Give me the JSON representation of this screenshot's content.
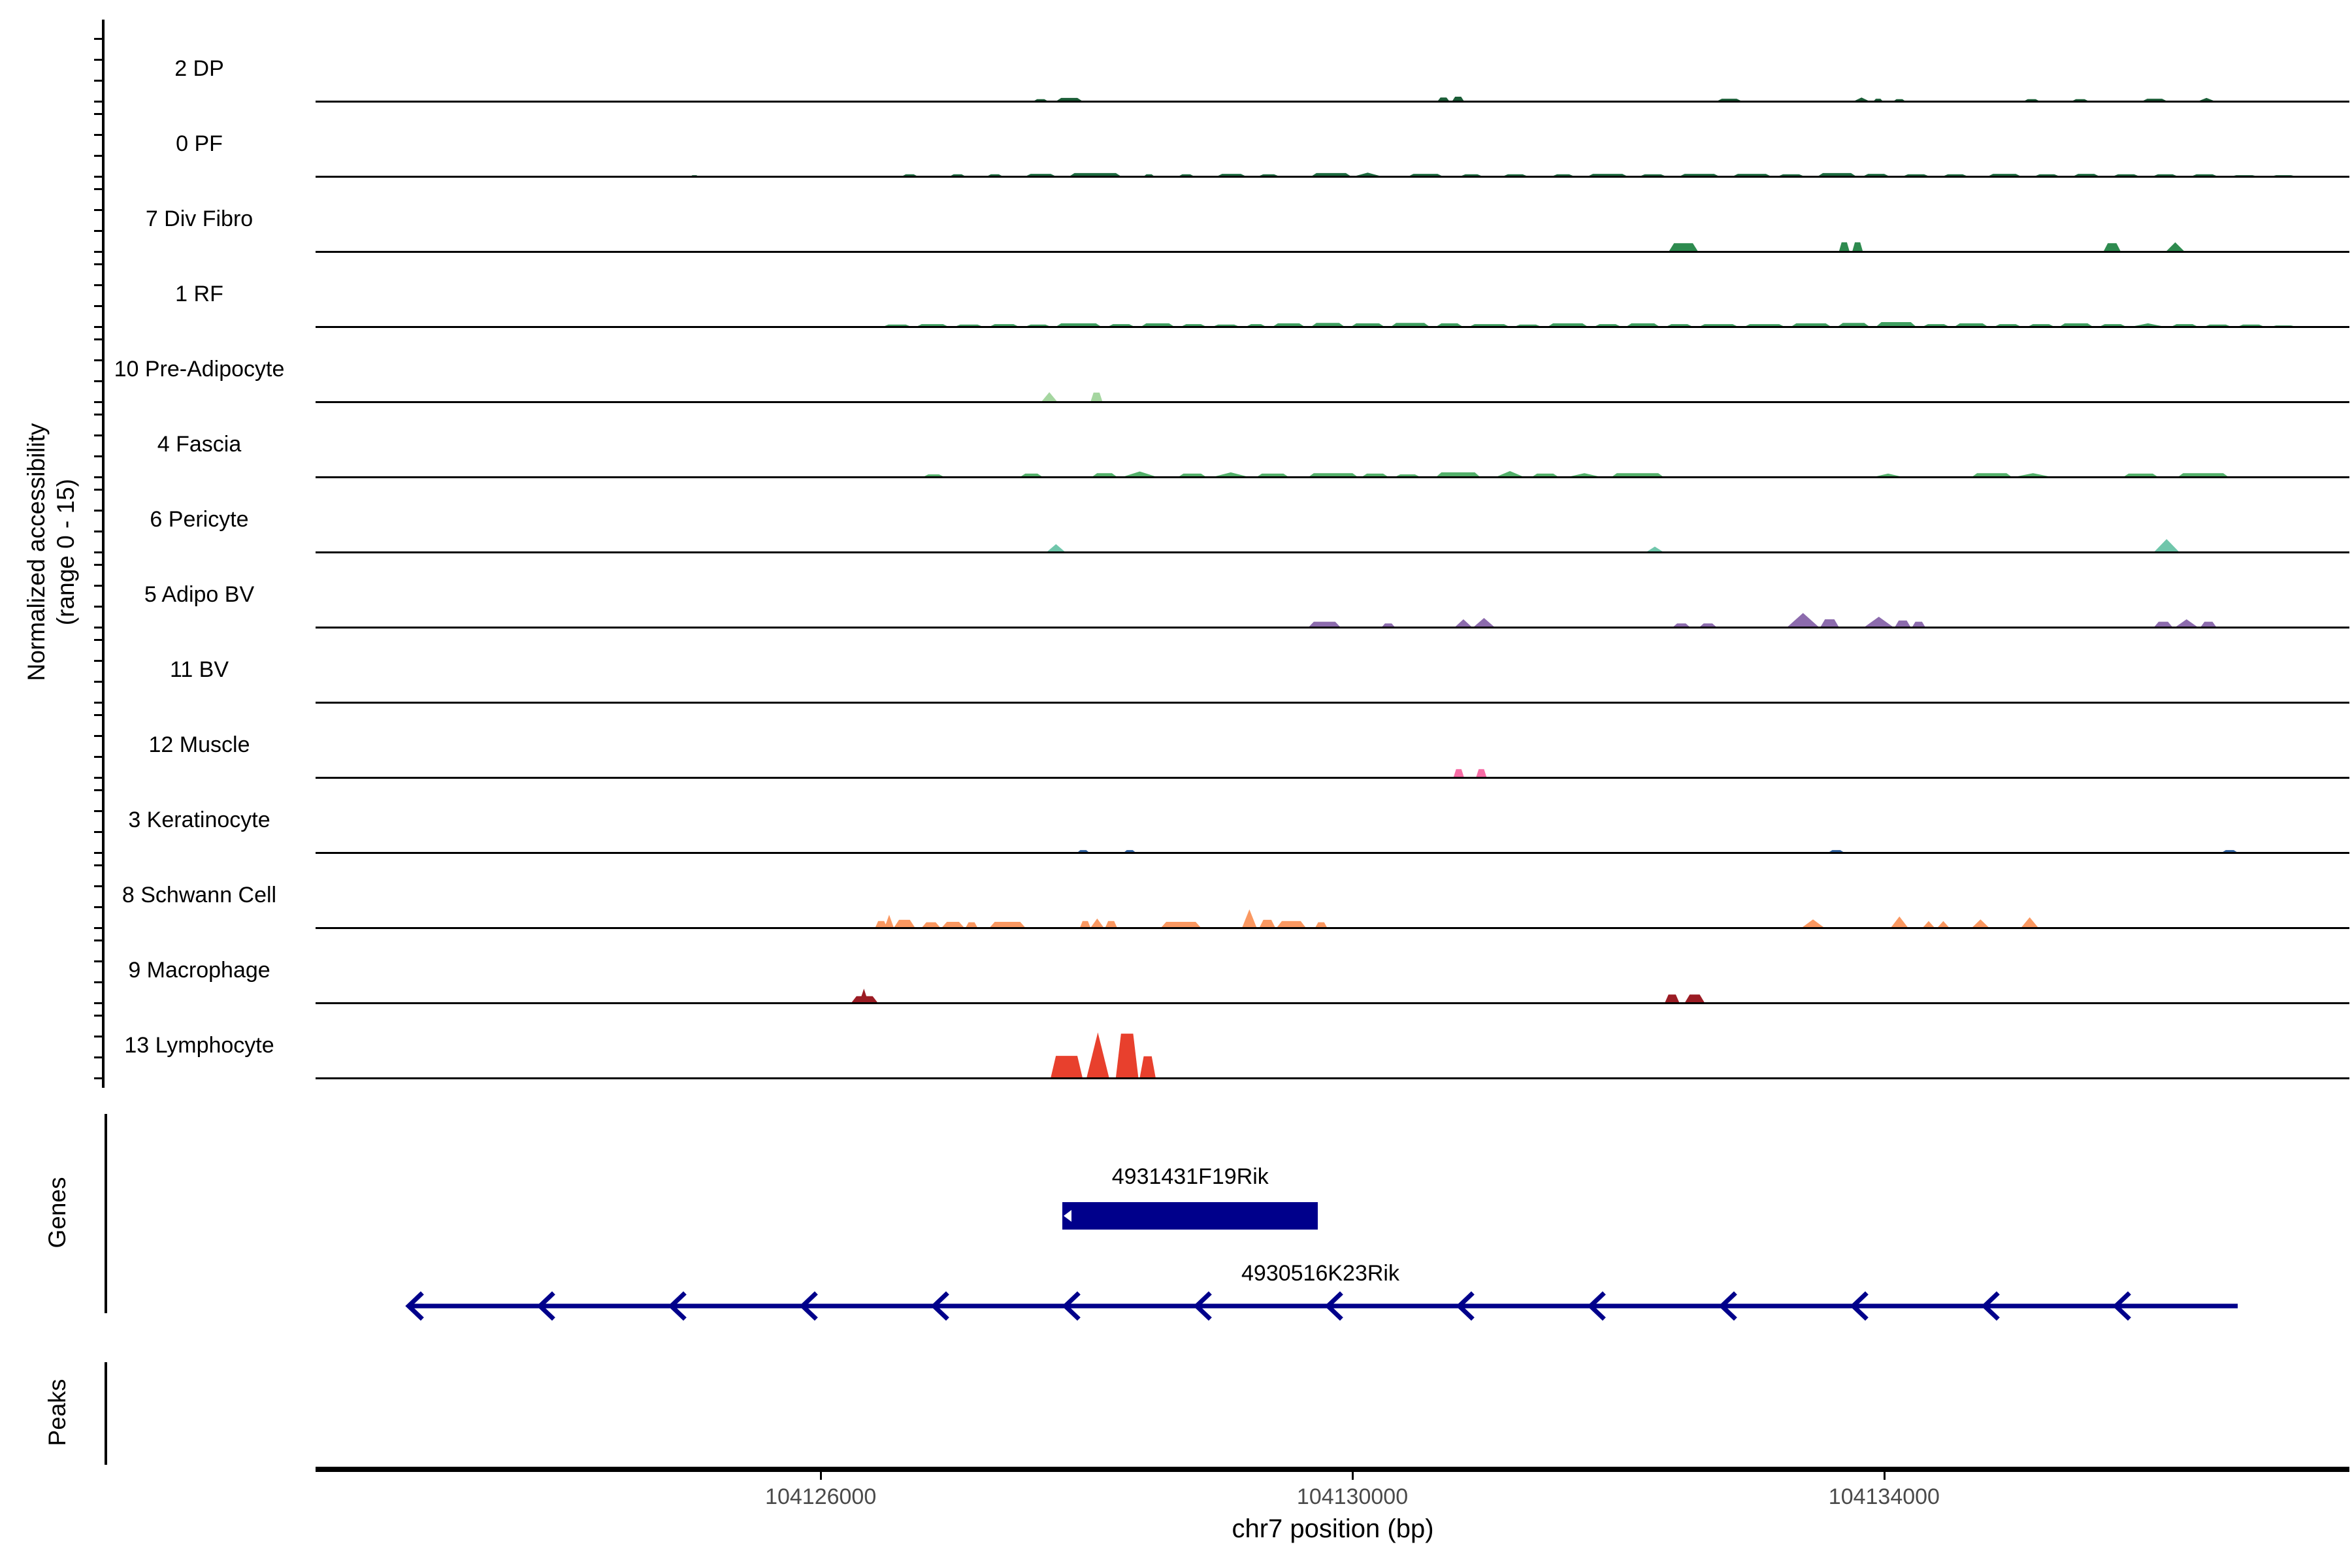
{
  "y_axis": {
    "title_line1": "Normalized accessibility",
    "title_line2": "(range 0 - 15)",
    "per_track_ticks": [
      0,
      5,
      10,
      15
    ],
    "range": [
      0,
      15
    ]
  },
  "x_axis": {
    "title": "chr7 position (bp)",
    "tick_values": [
      104126000,
      104130000,
      104134000
    ],
    "tick_labels": [
      "104126000",
      "104130000",
      "104134000"
    ],
    "xlim": [
      104122200,
      104137500
    ],
    "chromosome": "chr7"
  },
  "panels": {
    "genes": {
      "label": "Genes"
    },
    "peaks": {
      "label": "Peaks",
      "items": []
    }
  },
  "chart_data": {
    "type": "area",
    "subtype": "genome_accessibility_tracks",
    "xlabel": "chr7 position (bp)",
    "ylabel": "Normalized accessibility (range 0 - 15)",
    "xlim": [
      104122200,
      104137500
    ],
    "ylim_per_track": [
      0,
      15
    ],
    "tracks": [
      {
        "label": "2 DP",
        "color": "#1a5c36",
        "signal": [
          [
            104127600,
            104127710,
            0.5,
            "b"
          ],
          [
            104127770,
            104127970,
            0.8,
            "b"
          ],
          [
            104130640,
            104130730,
            0.9,
            "b"
          ],
          [
            104130750,
            104130840,
            1.1,
            "b"
          ],
          [
            104132740,
            104132930,
            0.6,
            "b"
          ],
          [
            104133770,
            104133890,
            0.9,
            "t"
          ],
          [
            104133920,
            104133990,
            0.6,
            "b"
          ],
          [
            104134070,
            104134160,
            0.5,
            "b"
          ],
          [
            104135050,
            104135170,
            0.5,
            "b"
          ],
          [
            104135410,
            104135540,
            0.5,
            "b"
          ],
          [
            104135940,
            104136130,
            0.6,
            "b"
          ],
          [
            104136360,
            104136490,
            0.8,
            "t"
          ]
        ]
      },
      {
        "label": "0 PF",
        "color": "#1e6b40",
        "signal": [
          [
            104125020,
            104125080,
            0.3,
            "b"
          ],
          [
            104126610,
            104126730,
            0.5,
            "b"
          ],
          [
            104126970,
            104127090,
            0.5,
            "b"
          ],
          [
            104127250,
            104127370,
            0.5,
            "b"
          ],
          [
            104127540,
            104127770,
            0.6,
            "b"
          ],
          [
            104127870,
            104128260,
            0.8,
            "b"
          ],
          [
            104128430,
            104128510,
            0.5,
            "b"
          ],
          [
            104128690,
            104128810,
            0.5,
            "b"
          ],
          [
            104128980,
            104129200,
            0.6,
            "b"
          ],
          [
            104129290,
            104129450,
            0.5,
            "b"
          ],
          [
            104129690,
            104129990,
            0.8,
            "b"
          ],
          [
            104130010,
            104130220,
            0.9,
            "t"
          ],
          [
            104130420,
            104130680,
            0.6,
            "b"
          ],
          [
            104130810,
            104130980,
            0.5,
            "b"
          ],
          [
            104131130,
            104131320,
            0.5,
            "b"
          ],
          [
            104131500,
            104131670,
            0.5,
            "b"
          ],
          [
            104131770,
            104132070,
            0.6,
            "b"
          ],
          [
            104132160,
            104132360,
            0.5,
            "b"
          ],
          [
            104132460,
            104132760,
            0.6,
            "b"
          ],
          [
            104132860,
            104133150,
            0.6,
            "b"
          ],
          [
            104133200,
            104133400,
            0.5,
            "b"
          ],
          [
            104133500,
            104133790,
            0.8,
            "b"
          ],
          [
            104133840,
            104134040,
            0.6,
            "b"
          ],
          [
            104134140,
            104134340,
            0.5,
            "b"
          ],
          [
            104134440,
            104134630,
            0.5,
            "b"
          ],
          [
            104134780,
            104135030,
            0.6,
            "b"
          ],
          [
            104135130,
            104135320,
            0.5,
            "b"
          ],
          [
            104135420,
            104135620,
            0.6,
            "b"
          ],
          [
            104135720,
            104135920,
            0.5,
            "b"
          ],
          [
            104136020,
            104136210,
            0.5,
            "b"
          ],
          [
            104136310,
            104136510,
            0.5,
            "b"
          ],
          [
            104136610,
            104136810,
            0.3,
            "b"
          ],
          [
            104136910,
            104137100,
            0.3,
            "b"
          ]
        ]
      },
      {
        "label": "7 Div Fibro",
        "color": "#2e8b4f",
        "signal": [
          [
            104132380,
            104132600,
            2.0,
            "b"
          ],
          [
            104133660,
            104133740,
            2.2,
            "b"
          ],
          [
            104133760,
            104133840,
            2.2,
            "b"
          ],
          [
            104135650,
            104135780,
            2.0,
            "b"
          ],
          [
            104136120,
            104136260,
            2.2,
            "t"
          ]
        ]
      },
      {
        "label": "1 RF",
        "color": "#3f9f60",
        "signal": [
          [
            104126470,
            104126680,
            0.5,
            "b"
          ],
          [
            104126720,
            104126960,
            0.6,
            "b"
          ],
          [
            104127010,
            104127220,
            0.5,
            "b"
          ],
          [
            104127270,
            104127490,
            0.6,
            "b"
          ],
          [
            104127540,
            104127730,
            0.5,
            "b"
          ],
          [
            104127770,
            104128110,
            0.8,
            "b"
          ],
          [
            104128160,
            104128360,
            0.6,
            "b"
          ],
          [
            104128410,
            104128660,
            0.8,
            "b"
          ],
          [
            104128710,
            104128900,
            0.6,
            "b"
          ],
          [
            104128950,
            104129150,
            0.5,
            "b"
          ],
          [
            104129200,
            104129350,
            0.6,
            "b"
          ],
          [
            104129400,
            104129640,
            0.8,
            "b"
          ],
          [
            104129690,
            104129940,
            0.9,
            "b"
          ],
          [
            104129990,
            104130240,
            0.8,
            "b"
          ],
          [
            104130290,
            104130580,
            0.9,
            "b"
          ],
          [
            104130630,
            104130830,
            0.8,
            "b"
          ],
          [
            104130880,
            104131180,
            0.6,
            "b"
          ],
          [
            104131220,
            104131420,
            0.5,
            "b"
          ],
          [
            104131470,
            104131770,
            0.8,
            "b"
          ],
          [
            104131820,
            104132020,
            0.6,
            "b"
          ],
          [
            104132060,
            104132310,
            0.8,
            "b"
          ],
          [
            104132360,
            104132560,
            0.6,
            "b"
          ],
          [
            104132610,
            104132900,
            0.6,
            "b"
          ],
          [
            104132950,
            104133250,
            0.6,
            "b"
          ],
          [
            104133300,
            104133600,
            0.8,
            "b"
          ],
          [
            104133650,
            104133890,
            0.9,
            "b"
          ],
          [
            104133940,
            104134240,
            1.1,
            "b"
          ],
          [
            104134290,
            104134490,
            0.6,
            "b"
          ],
          [
            104134530,
            104134780,
            0.8,
            "b"
          ],
          [
            104134830,
            104135030,
            0.6,
            "b"
          ],
          [
            104135080,
            104135280,
            0.6,
            "b"
          ],
          [
            104135320,
            104135570,
            0.8,
            "b"
          ],
          [
            104135620,
            104135820,
            0.6,
            "b"
          ],
          [
            104135860,
            104136110,
            0.8,
            "t"
          ],
          [
            104136160,
            104136360,
            0.6,
            "b"
          ],
          [
            104136410,
            104136610,
            0.5,
            "b"
          ],
          [
            104136660,
            104136860,
            0.5,
            "b"
          ],
          [
            104136910,
            104137100,
            0.3,
            "b"
          ]
        ]
      },
      {
        "label": "10 Pre-Adipocyte",
        "color": "#a5d6a0",
        "signal": [
          [
            104127660,
            104127780,
            2.3,
            "t"
          ],
          [
            104128030,
            104128120,
            2.2,
            "b"
          ]
        ]
      },
      {
        "label": "4 Fascia",
        "color": "#53b06a",
        "signal": [
          [
            104126770,
            104126930,
            0.6,
            "b"
          ],
          [
            104127500,
            104127670,
            0.8,
            "b"
          ],
          [
            104128040,
            104128230,
            0.9,
            "b"
          ],
          [
            104128270,
            104128530,
            1.3,
            "t"
          ],
          [
            104128690,
            104128900,
            0.8,
            "b"
          ],
          [
            104128950,
            104129220,
            1.1,
            "t"
          ],
          [
            104129280,
            104129520,
            0.8,
            "b"
          ],
          [
            104129670,
            104130040,
            0.9,
            "b"
          ],
          [
            104130070,
            104130270,
            0.8,
            "b"
          ],
          [
            104130320,
            104130510,
            0.6,
            "b"
          ],
          [
            104130630,
            104130960,
            1.1,
            "b"
          ],
          [
            104131080,
            104131290,
            1.4,
            "t"
          ],
          [
            104131350,
            104131550,
            0.8,
            "b"
          ],
          [
            104131620,
            104131870,
            0.9,
            "t"
          ],
          [
            104131950,
            104132340,
            0.9,
            "b"
          ],
          [
            104133920,
            104134140,
            0.8,
            "t"
          ],
          [
            104134660,
            104134960,
            0.9,
            "b"
          ],
          [
            104134980,
            104135260,
            0.9,
            "t"
          ],
          [
            104135800,
            104136060,
            0.8,
            "b"
          ],
          [
            104136210,
            104136590,
            0.9,
            "b"
          ]
        ]
      },
      {
        "label": "6 Pericyte",
        "color": "#70c6ab",
        "signal": [
          [
            104127700,
            104127840,
            1.9,
            "t"
          ],
          [
            104132210,
            104132340,
            1.3,
            "t"
          ],
          [
            104136030,
            104136220,
            3.1,
            "t"
          ]
        ]
      },
      {
        "label": "5 Adipo BV",
        "color": "#8c6bad",
        "signal": [
          [
            104129670,
            104129910,
            1.3,
            "b"
          ],
          [
            104130220,
            104130320,
            0.9,
            "b"
          ],
          [
            104130770,
            104130900,
            1.9,
            "t"
          ],
          [
            104130910,
            104131070,
            2.2,
            "t"
          ],
          [
            104132410,
            104132540,
            0.9,
            "b"
          ],
          [
            104132610,
            104132740,
            0.9,
            "b"
          ],
          [
            104133270,
            104133510,
            3.4,
            "t"
          ],
          [
            104133520,
            104133660,
            1.9,
            "b"
          ],
          [
            104133850,
            104134070,
            2.5,
            "t"
          ],
          [
            104134080,
            104134200,
            1.6,
            "b"
          ],
          [
            104134210,
            104134310,
            1.3,
            "b"
          ],
          [
            104136030,
            104136170,
            1.3,
            "b"
          ],
          [
            104136190,
            104136360,
            1.9,
            "t"
          ],
          [
            104136380,
            104136500,
            1.3,
            "b"
          ]
        ]
      },
      {
        "label": "11 BV",
        "color": "#b784c9",
        "signal": []
      },
      {
        "label": "12 Muscle",
        "color": "#f76ca5",
        "signal": [
          [
            104130760,
            104130840,
            2.0,
            "b"
          ],
          [
            104130930,
            104131010,
            2.0,
            "b"
          ]
        ]
      },
      {
        "label": "3 Keratinocyte",
        "color": "#2d5f9e",
        "signal": [
          [
            104127930,
            104128020,
            0.6,
            "b"
          ],
          [
            104128280,
            104128370,
            0.6,
            "b"
          ],
          [
            104133580,
            104133700,
            0.6,
            "b"
          ],
          [
            104136540,
            104136660,
            0.6,
            "b"
          ]
        ]
      },
      {
        "label": "8 Schwann Cell",
        "color": "#fa9861",
        "signal": [
          [
            104126410,
            104126500,
            1.6,
            "b"
          ],
          [
            104126480,
            104126550,
            3.1,
            "s"
          ],
          [
            104126550,
            104126710,
            1.9,
            "b"
          ],
          [
            104126760,
            104126900,
            1.3,
            "b"
          ],
          [
            104126910,
            104127080,
            1.4,
            "b"
          ],
          [
            104127090,
            104127180,
            1.3,
            "b"
          ],
          [
            104127270,
            104127540,
            1.4,
            "b"
          ],
          [
            104127950,
            104128030,
            1.6,
            "b"
          ],
          [
            104128030,
            104128130,
            2.2,
            "t"
          ],
          [
            104128140,
            104128230,
            1.6,
            "b"
          ],
          [
            104128560,
            104128860,
            1.4,
            "b"
          ],
          [
            104129170,
            104129280,
            4.4,
            "t"
          ],
          [
            104129300,
            104129420,
            1.9,
            "b"
          ],
          [
            104129430,
            104129650,
            1.6,
            "b"
          ],
          [
            104129720,
            104129810,
            1.3,
            "b"
          ],
          [
            104133380,
            104133550,
            2.0,
            "t"
          ],
          [
            104134050,
            104134180,
            2.7,
            "t"
          ],
          [
            104134290,
            104134380,
            1.6,
            "t"
          ],
          [
            104134400,
            104134490,
            1.6,
            "t"
          ],
          [
            104134660,
            104134790,
            2.0,
            "t"
          ],
          [
            104135030,
            104135160,
            2.5,
            "t"
          ]
        ]
      },
      {
        "label": "9 Macrophage",
        "color": "#9b1c24",
        "signal": [
          [
            104126230,
            104126430,
            1.6,
            "b"
          ],
          [
            104126290,
            104126360,
            3.4,
            "s"
          ],
          [
            104132350,
            104132460,
            2.0,
            "b"
          ],
          [
            104132500,
            104132650,
            2.0,
            "b"
          ]
        ]
      },
      {
        "label": "13 Lymphocyte",
        "color": "#e8402d",
        "signal": [
          [
            104127730,
            104127970,
            5.3,
            "b"
          ],
          [
            104128000,
            104128170,
            10.9,
            "t"
          ],
          [
            104128220,
            104128390,
            10.6,
            "b"
          ],
          [
            104128400,
            104128520,
            5.2,
            "b"
          ]
        ]
      }
    ],
    "genes": [
      {
        "name": "4931431F19Rik",
        "shape": "box",
        "start": 104127820,
        "end": 104129740,
        "strand": "-",
        "color": "#00008b"
      },
      {
        "name": "4930516K23Rik",
        "shape": "line",
        "start": 104122900,
        "end": 104136660,
        "strand": "-",
        "arrowheads": 14,
        "color": "#00008b"
      }
    ],
    "peaks": []
  }
}
